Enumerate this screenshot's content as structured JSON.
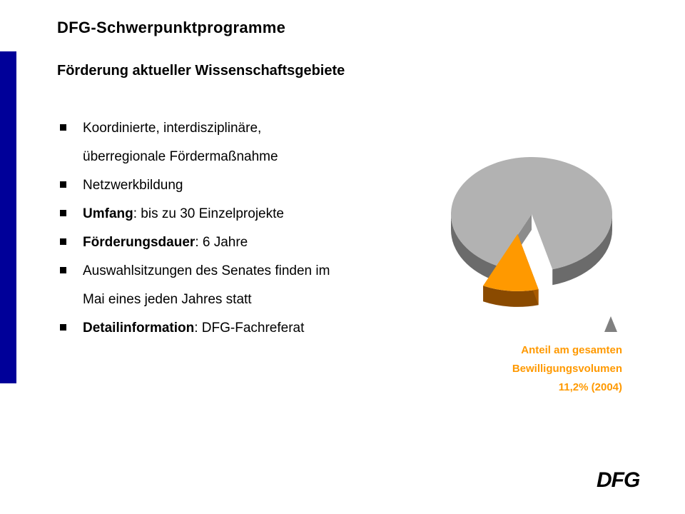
{
  "header": {
    "title": "DFG-Schwerpunktprogramme",
    "subtitle": "Förderung aktueller Wissenschaftsgebiete"
  },
  "bullets": [
    {
      "bold": "",
      "text": "Koordinierte, interdisziplinäre,"
    },
    {
      "bold": "",
      "text": "überregionale Fördermaßnahme",
      "continuation": true
    },
    {
      "bold": "",
      "text": "Netzwerkbildung"
    },
    {
      "bold": "Umfang",
      "text": ": bis zu 30 Einzelprojekte"
    },
    {
      "bold": "Förderungsdauer",
      "text": ": 6 Jahre"
    },
    {
      "bold": "",
      "text": "Auswahlsitzungen des Senates finden im"
    },
    {
      "bold": "",
      "text": "Mai eines jeden Jahres statt",
      "continuation": true
    },
    {
      "bold": "Detailinformation",
      "text": ": DFG-Fachreferat"
    }
  ],
  "chart_data": {
    "type": "pie",
    "slices": [
      {
        "value": 88.8,
        "color": "#B2B2B2"
      },
      {
        "value": 11.2,
        "color": "#FF9900"
      }
    ]
  },
  "caption": {
    "line1": "Anteil am gesamten",
    "line2": "Bewilligungsvolumen",
    "line3": "11,2% (2004)"
  },
  "logo": {
    "text": "DFG"
  },
  "colors": {
    "accent_bar": "#000099",
    "highlight": "#FF9900",
    "pie_main": "#B2B2B2",
    "pie_main_side": "#6B6B6B",
    "pie_slice_side": "#8A4A00"
  },
  "icons": {
    "pointer": "triangle-up-icon"
  }
}
